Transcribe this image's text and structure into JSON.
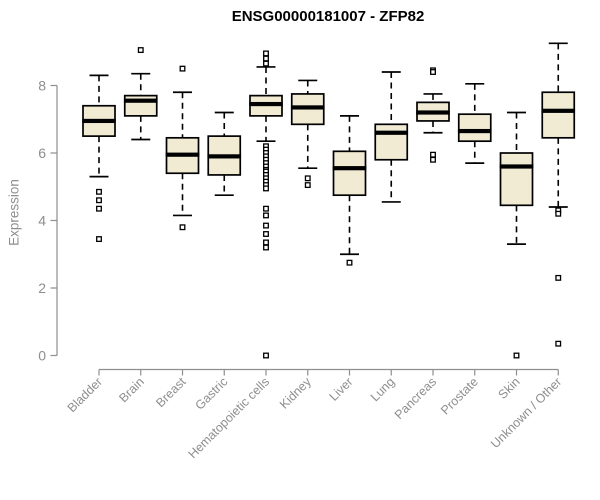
{
  "style": {
    "background": "#FFFFFF",
    "box_fill": "#F1EBD3",
    "box_stroke": "#000000",
    "median_color": "#000000",
    "whisker_color": "#000000",
    "outlier_fill": "#FFFFFF",
    "outlier_stroke": "#000000",
    "axis_color": "#8E8E8E",
    "tick_label_color": "#8E8E8E",
    "title_color": "#000000"
  },
  "chart_data": {
    "type": "boxplot",
    "title": "ENSG00000181007 - ZFP82",
    "xlabel": "",
    "ylabel": "Expression",
    "ylim": [
      0,
      9.35
    ],
    "yticks": [
      0,
      2,
      4,
      6,
      8
    ],
    "grid": false,
    "legend": false,
    "categories": [
      "Bladder",
      "Brain",
      "Breast",
      "Gastric",
      "Hematopoietic cells",
      "Kidney",
      "Liver",
      "Lung",
      "Pancreas",
      "Prostate",
      "Skin",
      "Unknown / Other"
    ],
    "boxes": [
      {
        "category": "Bladder",
        "whisker_low": 5.3,
        "q1": 6.5,
        "median": 6.95,
        "q3": 7.4,
        "whisker_high": 8.3,
        "outliers": [
          4.85,
          4.6,
          4.35,
          3.45
        ]
      },
      {
        "category": "Brain",
        "whisker_low": 6.4,
        "q1": 7.1,
        "median": 7.55,
        "q3": 7.7,
        "whisker_high": 8.35,
        "outliers": [
          9.05
        ]
      },
      {
        "category": "Breast",
        "whisker_low": 4.15,
        "q1": 5.4,
        "median": 5.95,
        "q3": 6.45,
        "whisker_high": 7.8,
        "outliers": [
          8.5,
          3.8
        ]
      },
      {
        "category": "Gastric",
        "whisker_low": 4.75,
        "q1": 5.35,
        "median": 5.9,
        "q3": 6.5,
        "whisker_high": 7.2,
        "outliers": []
      },
      {
        "category": "Hematopoietic cells",
        "whisker_low": 6.35,
        "q1": 7.1,
        "median": 7.45,
        "q3": 7.7,
        "whisker_high": 8.55,
        "outliers": [
          8.95,
          8.8,
          8.65,
          6.2,
          6.1,
          6.0,
          5.9,
          5.8,
          5.7,
          5.6,
          5.5,
          5.45,
          5.35,
          5.25,
          5.15,
          5.05,
          4.95,
          4.35,
          4.15,
          3.85,
          3.6,
          3.35,
          3.2,
          0.0
        ]
      },
      {
        "category": "Kidney",
        "whisker_low": 5.55,
        "q1": 6.85,
        "median": 7.35,
        "q3": 7.75,
        "whisker_high": 8.15,
        "outliers": [
          5.25,
          5.05
        ]
      },
      {
        "category": "Liver",
        "whisker_low": 3.0,
        "q1": 4.75,
        "median": 5.55,
        "q3": 6.05,
        "whisker_high": 7.1,
        "outliers": [
          2.75
        ]
      },
      {
        "category": "Lung",
        "whisker_low": 4.55,
        "q1": 5.8,
        "median": 6.6,
        "q3": 6.85,
        "whisker_high": 8.4,
        "outliers": []
      },
      {
        "category": "Pancreas",
        "whisker_low": 6.6,
        "q1": 6.95,
        "median": 7.2,
        "q3": 7.5,
        "whisker_high": 7.75,
        "outliers": [
          8.45,
          8.4,
          5.95,
          5.8
        ]
      },
      {
        "category": "Prostate",
        "whisker_low": 5.7,
        "q1": 6.35,
        "median": 6.65,
        "q3": 7.15,
        "whisker_high": 8.05,
        "outliers": []
      },
      {
        "category": "Skin",
        "whisker_low": 3.3,
        "q1": 4.45,
        "median": 5.6,
        "q3": 6.0,
        "whisker_high": 7.2,
        "outliers": [
          0.0
        ]
      },
      {
        "category": "Unknown / Other",
        "whisker_low": 4.4,
        "q1": 6.45,
        "median": 7.25,
        "q3": 7.8,
        "whisker_high": 9.25,
        "outliers": [
          4.3,
          4.2,
          2.3,
          0.35
        ]
      }
    ]
  }
}
